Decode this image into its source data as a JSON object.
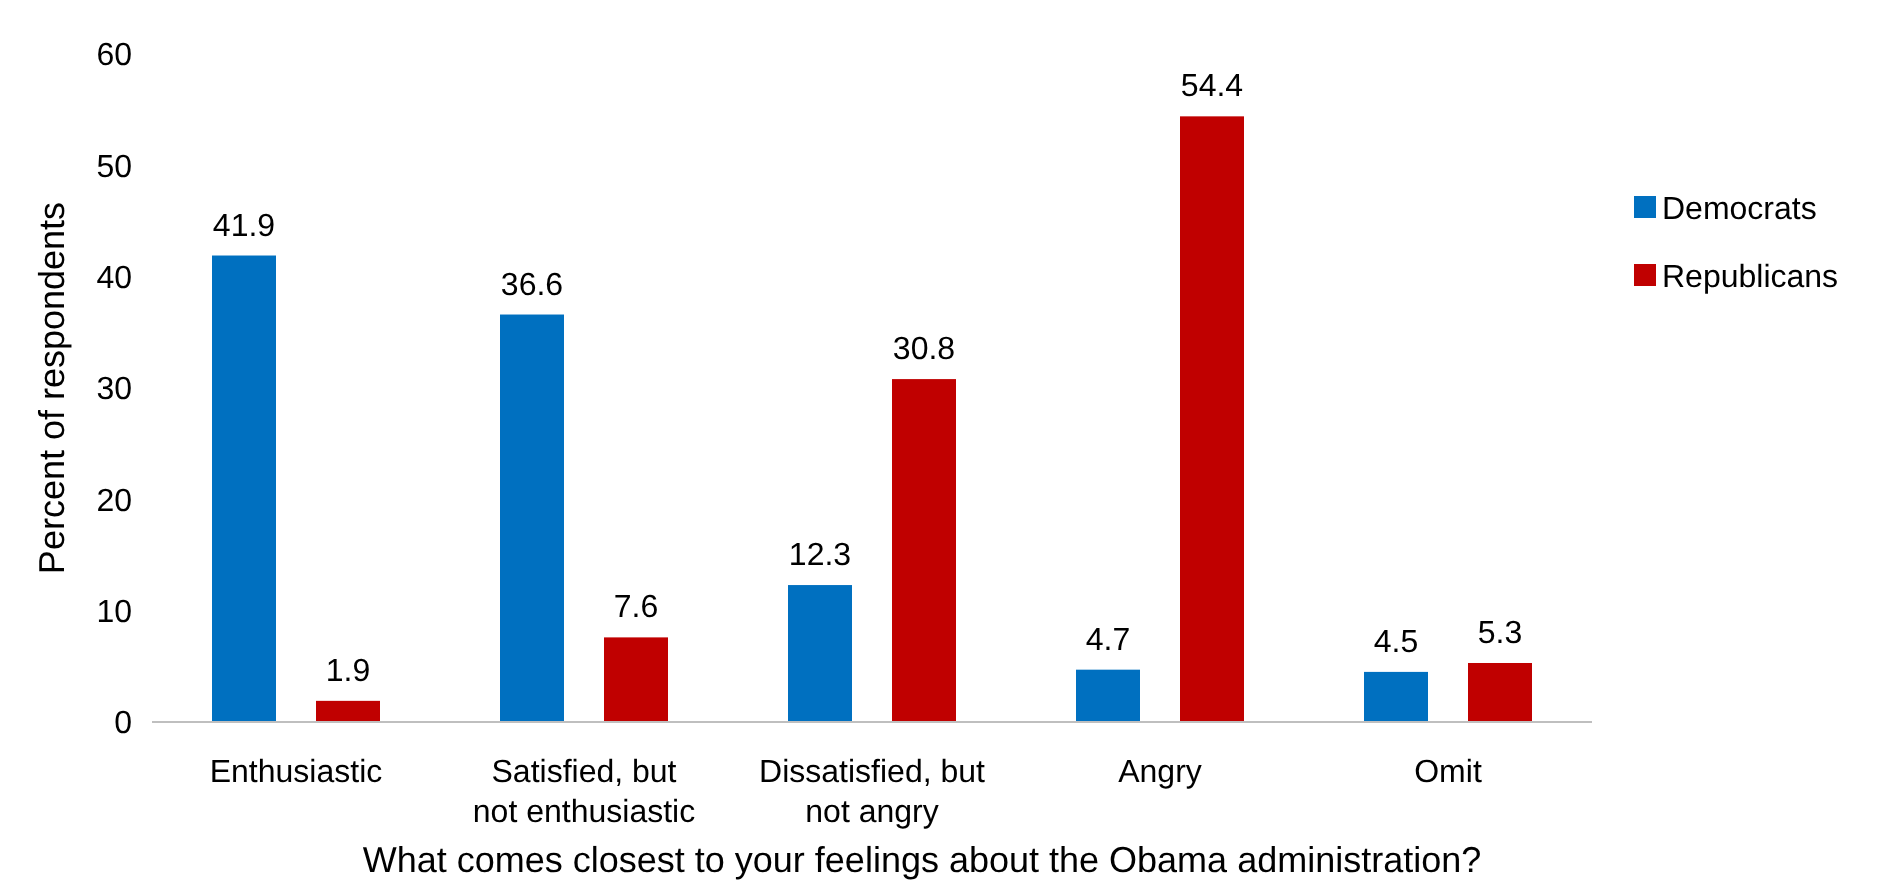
{
  "chart_data": {
    "type": "bar",
    "xlabel": "What comes closest to your feelings about the Obama administration?",
    "ylabel": "Percent of respondents",
    "categories": [
      "Enthusiastic",
      "Satisfied, but not enthusiastic",
      "Dissatisfied, but not angry",
      "Angry",
      "Omit"
    ],
    "series": [
      {
        "name": "Democrats",
        "color": "#0070c0",
        "values": [
          41.9,
          36.6,
          12.3,
          4.7,
          4.5
        ]
      },
      {
        "name": "Republicans",
        "color": "#c00000",
        "values": [
          1.9,
          7.6,
          30.8,
          54.4,
          5.3
        ]
      }
    ],
    "ylim": [
      0,
      60
    ],
    "yticks": [
      0,
      10,
      20,
      30,
      40,
      50,
      60
    ],
    "data_labels": true,
    "legend": "right"
  }
}
